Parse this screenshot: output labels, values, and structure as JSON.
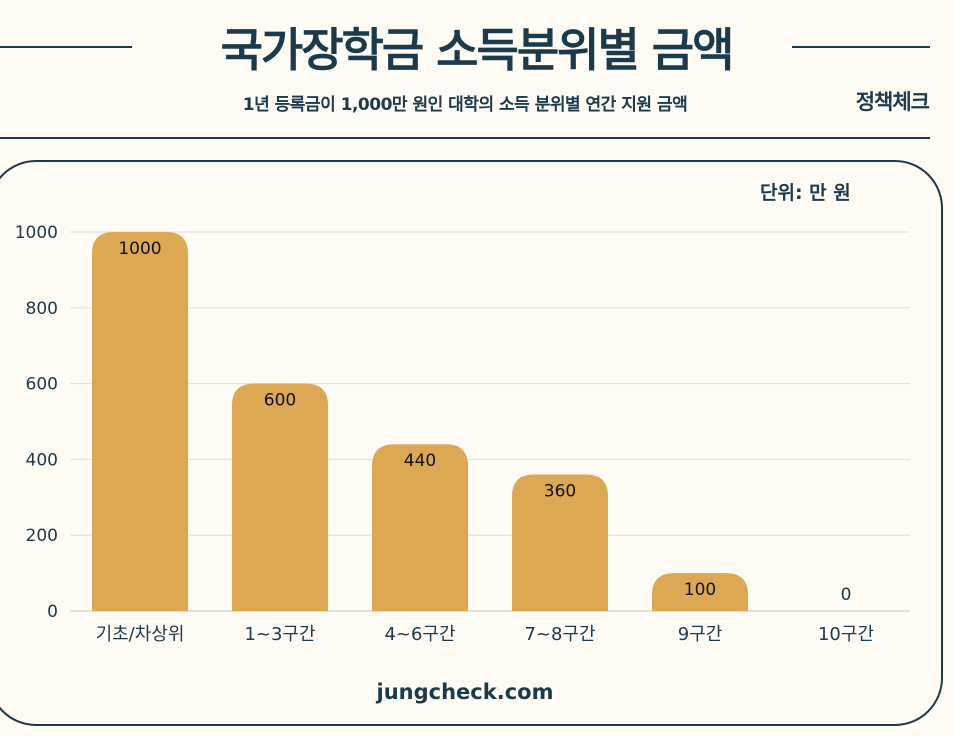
{
  "header": {
    "title": "국가장학금 소득분위별 금액",
    "subtitle": "1년 등록금이 1,000만 원인 대학의 소득 분위별 연간 지원 금액",
    "brand": "정책체크"
  },
  "footer": {
    "site": "jungcheck.com"
  },
  "colors": {
    "bar": "#dca853",
    "text": "#1b3a4b",
    "background": "#fefbf4",
    "grid": "#e0ddd6"
  },
  "chart_data": {
    "type": "bar",
    "title": "",
    "unit_label": "단위: 만 원",
    "categories": [
      "기초/차상위",
      "1~3구간",
      "4~6구간",
      "7~8구간",
      "9구간",
      "10구간"
    ],
    "values": [
      1000,
      600,
      440,
      360,
      100,
      0
    ],
    "ylim": [
      0,
      1000
    ],
    "yticks": [
      0,
      200,
      400,
      600,
      800,
      1000
    ],
    "grid": true,
    "data_labels": true
  }
}
